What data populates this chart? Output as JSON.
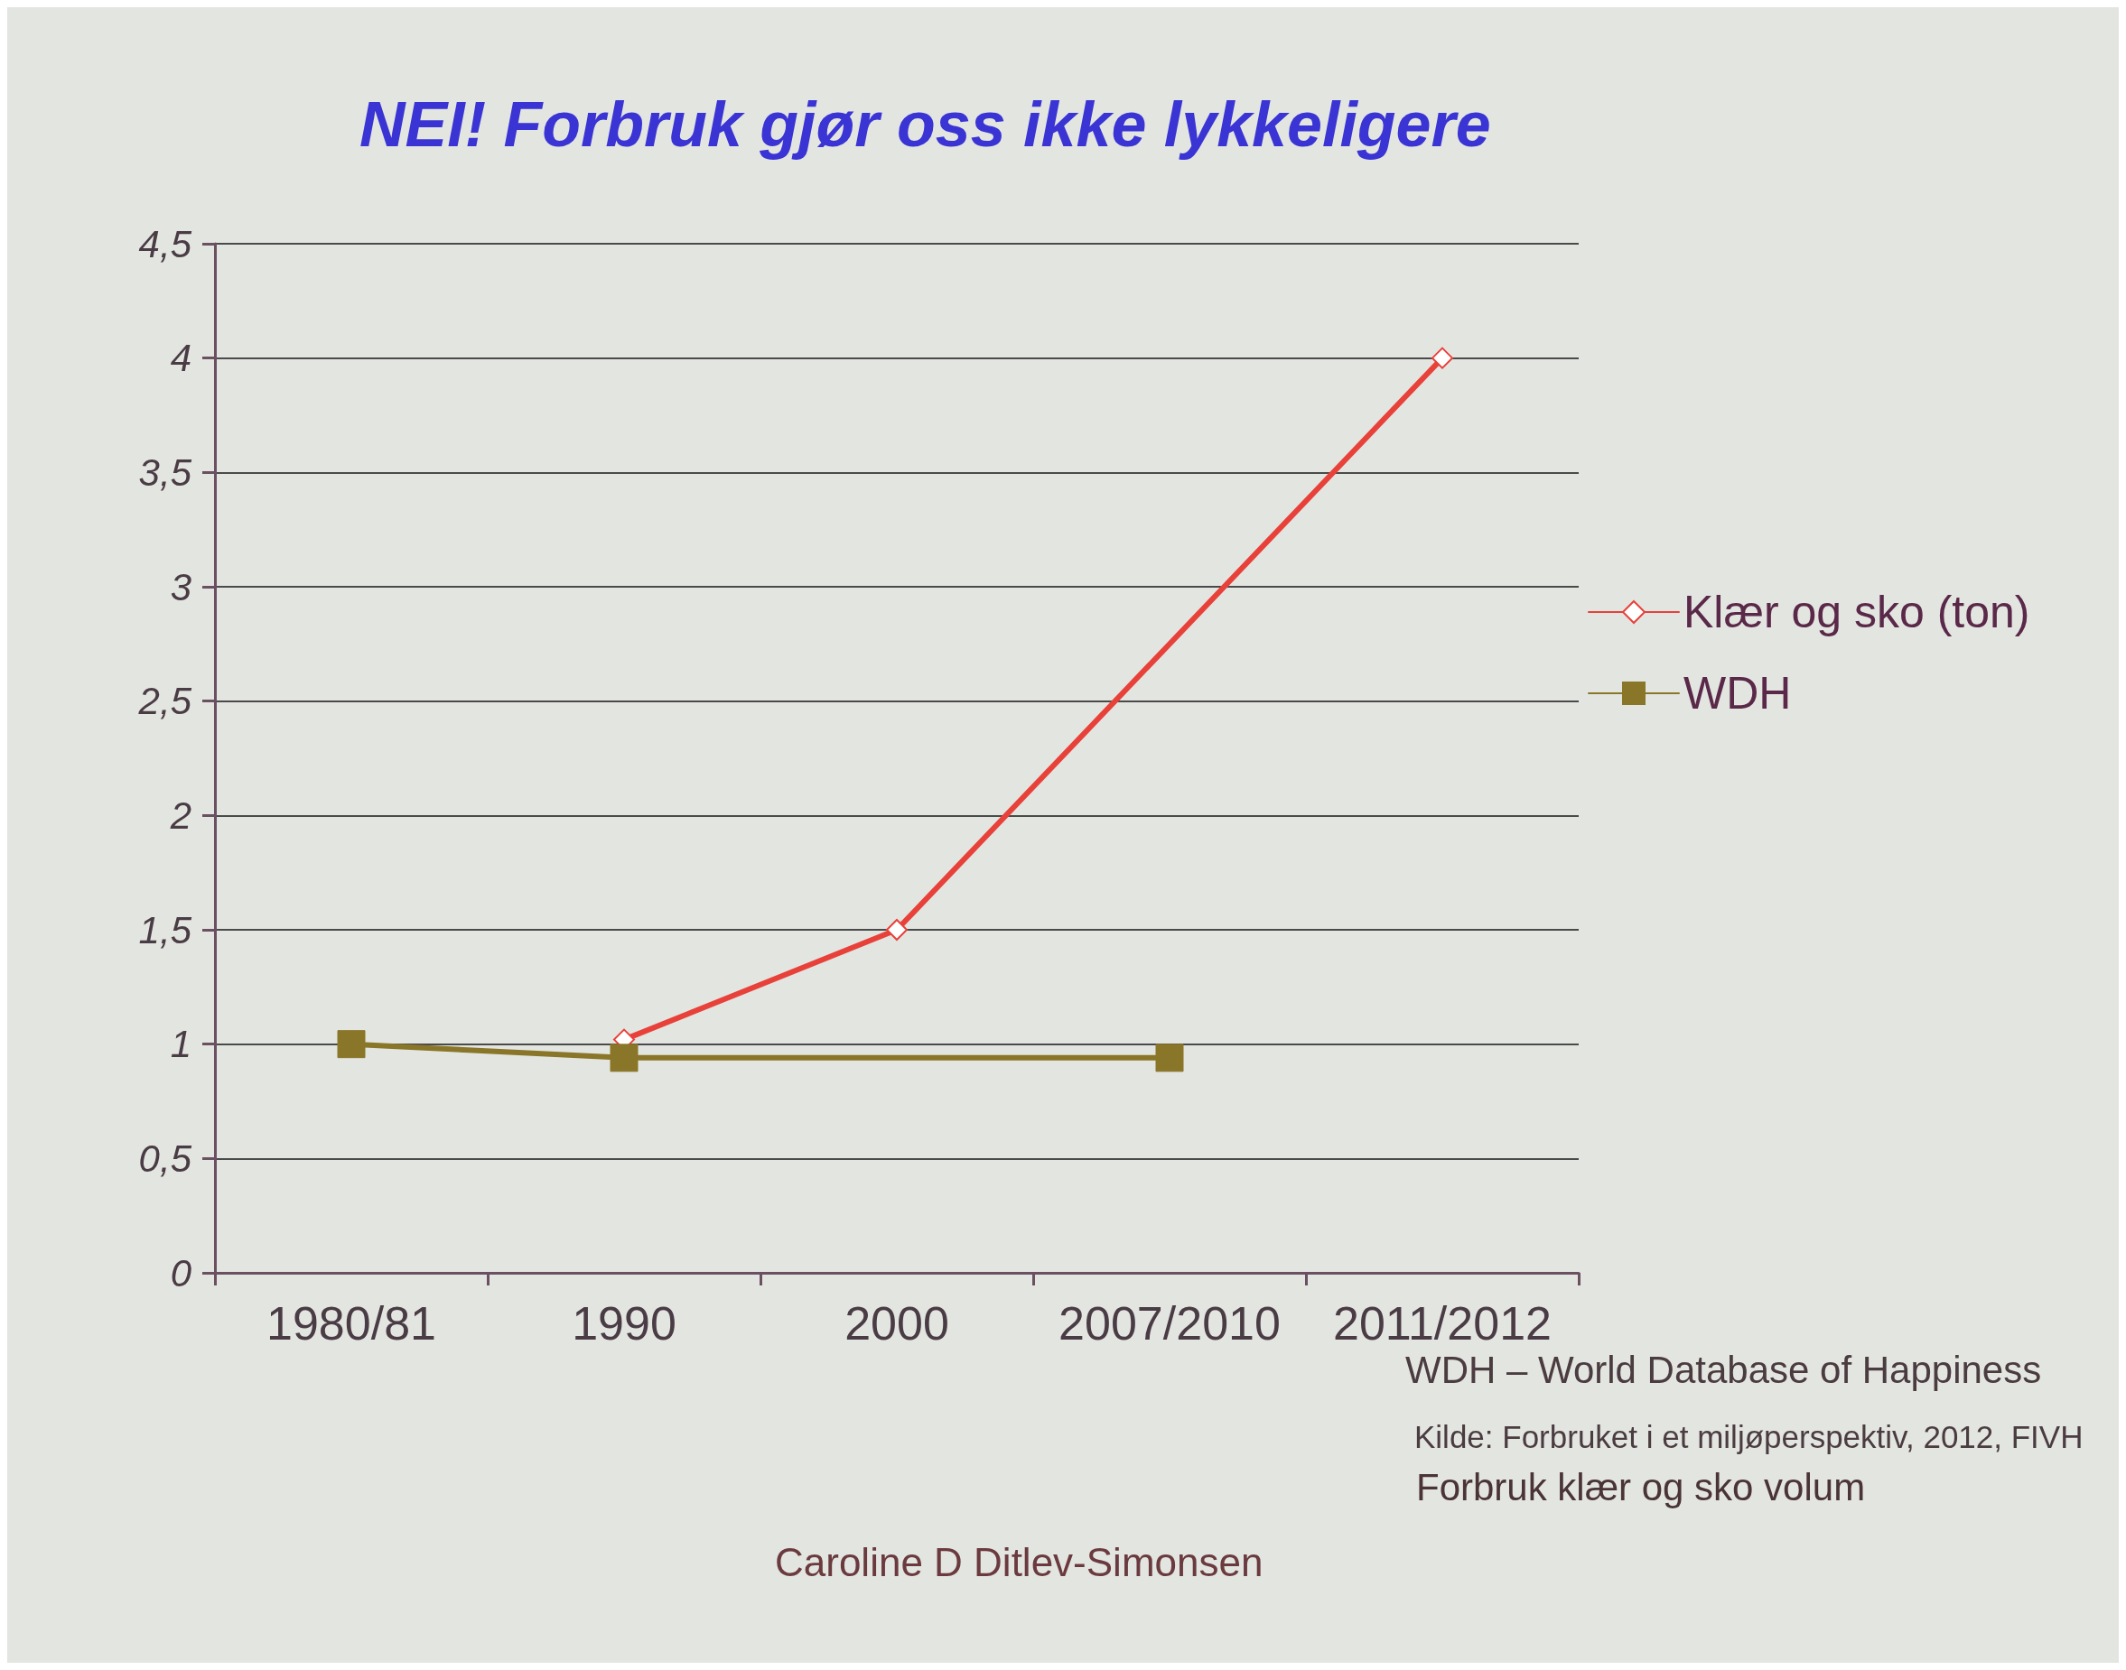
{
  "chart_data": {
    "type": "line",
    "title": "NEI! Forbruk gjør oss ikke lykkeligere",
    "categories": [
      "1980/81",
      "1990",
      "2000",
      "2007/2010",
      "2011/2012"
    ],
    "series": [
      {
        "name": "Klær og sko (ton)",
        "color": "#e8413a",
        "marker": "diamond",
        "values": [
          null,
          1.02,
          1.5,
          null,
          4.0
        ]
      },
      {
        "name": "WDH",
        "color": "#8a7629",
        "marker": "square",
        "values": [
          1.0,
          0.94,
          null,
          0.94,
          null
        ]
      }
    ],
    "ylim": [
      0,
      4.5
    ],
    "yticks": [
      0,
      {
        "value": 0.5,
        "label": "0,5"
      },
      1,
      {
        "value": 1.5,
        "label": "1,5"
      },
      2,
      {
        "value": 2.5,
        "label": "2,5"
      },
      3,
      {
        "value": 3.5,
        "label": "3,5"
      },
      4,
      {
        "value": 4.5,
        "label": "4,5"
      }
    ],
    "grid": "y",
    "legend": "right",
    "line_style": "solid",
    "annotations": [
      "WDH – World Database of Happiness",
      "Kilde: Forbruket i et miljøperspektiv, 2012, FIVH",
      "Forbruk klær og sko volum",
      "Caroline D Ditlev-Simonsen"
    ]
  }
}
